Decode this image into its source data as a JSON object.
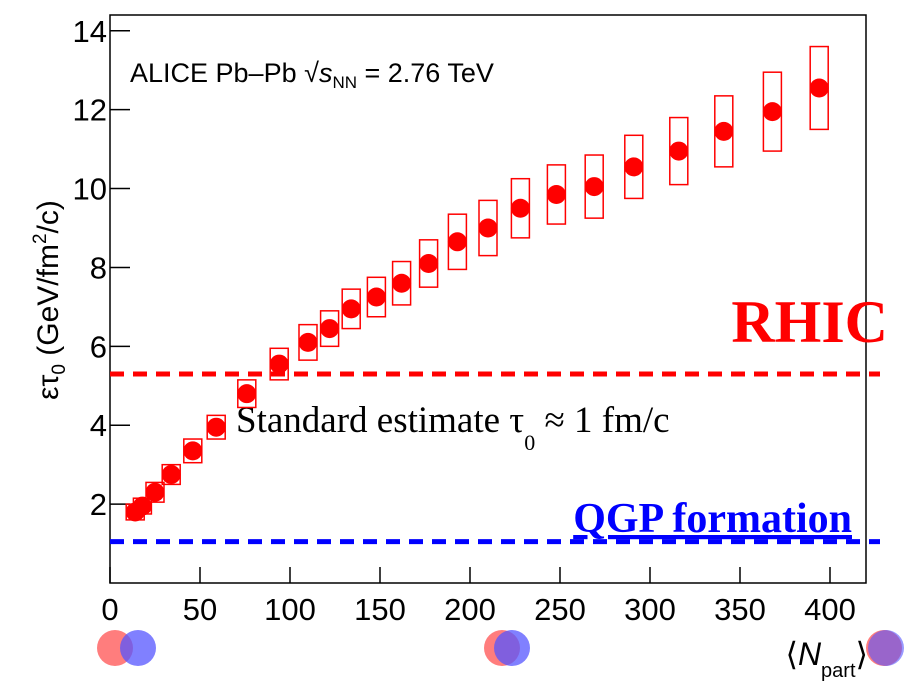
{
  "chart_data": {
    "type": "scatter",
    "annotation": [
      "ALICE Pb–Pb ",
      "√",
      "s",
      "NN",
      " = 2.76 TeV"
    ],
    "y_label": [
      "ετ",
      "0",
      " (GeV/fm",
      "2",
      "/c)"
    ],
    "x_label": [
      "⟨",
      "N",
      "part",
      "⟩"
    ],
    "xlim": [
      0,
      420
    ],
    "ylim": [
      0,
      14.4
    ],
    "xticks": [
      0,
      50,
      100,
      150,
      200,
      250,
      300,
      350,
      400
    ],
    "yticks": [
      2,
      4,
      6,
      8,
      10,
      12,
      14
    ],
    "series": [
      {
        "color": "#ff0000",
        "x": [
          14,
          18,
          25,
          34,
          46,
          59,
          76,
          94,
          110,
          122,
          134,
          148,
          162,
          177,
          193,
          210,
          228,
          248,
          269,
          291,
          316,
          341,
          368,
          394
        ],
        "values": [
          1.8,
          1.95,
          2.3,
          2.75,
          3.35,
          3.95,
          4.8,
          5.55,
          6.1,
          6.45,
          6.95,
          7.25,
          7.6,
          8.1,
          8.65,
          9.0,
          9.5,
          9.85,
          10.05,
          10.55,
          10.95,
          11.45,
          11.95,
          12.55
        ],
        "errors": [
          0.2,
          0.2,
          0.25,
          0.25,
          0.3,
          0.3,
          0.35,
          0.4,
          0.45,
          0.45,
          0.5,
          0.5,
          0.55,
          0.6,
          0.7,
          0.7,
          0.75,
          0.75,
          0.8,
          0.8,
          0.85,
          0.9,
          1.0,
          1.05
        ]
      }
    ],
    "hlines": [
      {
        "value": 5.3,
        "color": "#ff0000",
        "label": "RHIC"
      },
      {
        "value": 1.05,
        "color": "#0000ff",
        "label": "QGP formation"
      }
    ],
    "note": [
      "Standard estimate τ",
      "0",
      " ≈ 1 fm/c"
    ]
  }
}
